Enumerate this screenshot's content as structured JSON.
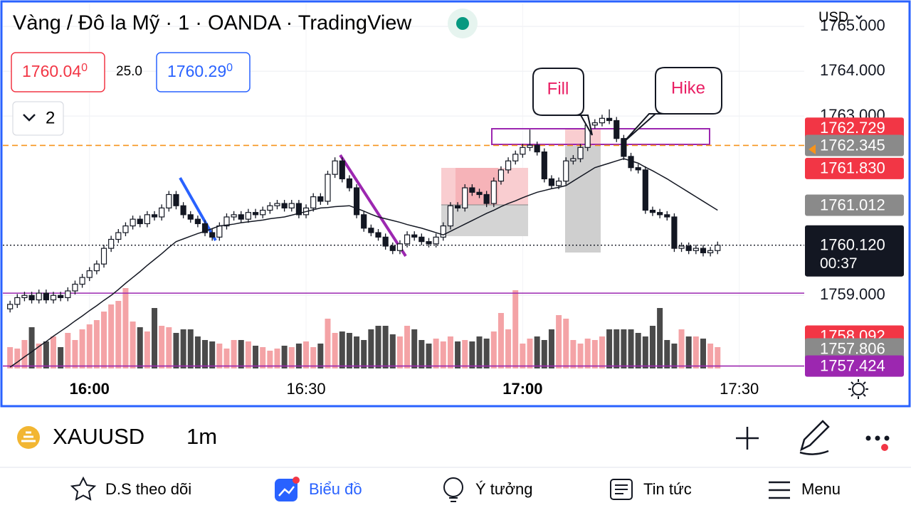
{
  "header": {
    "title": "Vàng / Đô la Mỹ · 1 · OANDA · TradingView",
    "currency": "USD",
    "bid": "1760.04",
    "bid_sup": "0",
    "spread": "25.0",
    "ask": "1760.29",
    "ask_sup": "0",
    "indicators_count": "2"
  },
  "chart_data": {
    "type": "candlestick",
    "x": [
      "15:49",
      "15:50",
      "15:51",
      "15:52",
      "15:53",
      "15:54",
      "15:55",
      "15:56",
      "15:57",
      "15:58",
      "15:59",
      "16:00",
      "16:01",
      "16:02",
      "16:03",
      "16:04",
      "16:05",
      "16:06",
      "16:07",
      "16:08",
      "16:09",
      "16:10",
      "16:11",
      "16:12",
      "16:13",
      "16:14",
      "16:15",
      "16:16",
      "16:17",
      "16:18",
      "16:19",
      "16:20",
      "16:21",
      "16:22",
      "16:23",
      "16:24",
      "16:25",
      "16:26",
      "16:27",
      "16:28",
      "16:29",
      "16:30",
      "16:31",
      "16:32",
      "16:33",
      "16:34",
      "16:35",
      "16:36",
      "16:37",
      "16:38",
      "16:39",
      "16:40",
      "16:41",
      "16:42",
      "16:43",
      "16:44",
      "16:45",
      "16:46",
      "16:47",
      "16:48",
      "16:49",
      "16:50",
      "16:51",
      "16:52",
      "16:53",
      "16:54",
      "16:55",
      "16:56",
      "16:57",
      "16:58",
      "16:59",
      "17:00",
      "17:01",
      "17:02",
      "17:03",
      "17:04",
      "17:05",
      "17:06",
      "17:07",
      "17:08",
      "17:09",
      "17:10",
      "17:11",
      "17:12",
      "17:13",
      "17:14",
      "17:15",
      "17:16",
      "17:17",
      "17:18",
      "17:19",
      "17:20",
      "17:21",
      "17:22",
      "17:23",
      "17:24",
      "17:25",
      "17:26",
      "17:27"
    ],
    "open": [
      1758.7,
      1758.8,
      1758.95,
      1759.0,
      1758.9,
      1759.05,
      1758.9,
      1759.0,
      1758.95,
      1759.1,
      1759.25,
      1759.4,
      1759.55,
      1759.7,
      1760.05,
      1760.25,
      1760.4,
      1760.55,
      1760.7,
      1760.6,
      1760.8,
      1760.75,
      1760.95,
      1761.25,
      1761.0,
      1760.8,
      1760.7,
      1760.6,
      1760.4,
      1760.3,
      1760.55,
      1760.75,
      1760.8,
      1760.7,
      1760.85,
      1760.8,
      1760.9,
      1761.0,
      1761.05,
      1760.95,
      1761.05,
      1760.8,
      1760.95,
      1761.2,
      1761.1,
      1761.7,
      1762.0,
      1761.6,
      1761.4,
      1760.8,
      1760.5,
      1760.4,
      1760.3,
      1760.1,
      1760.0,
      1760.15,
      1760.35,
      1760.3,
      1760.2,
      1760.15,
      1760.3,
      1760.55,
      1761.0,
      1760.95,
      1761.4,
      1761.3,
      1761.25,
      1761.05,
      1761.55,
      1761.8,
      1762.0,
      1762.15,
      1762.3,
      1762.35,
      1762.2,
      1761.6,
      1761.45,
      1761.55,
      1762.0,
      1762.05,
      1762.3,
      1762.8,
      1762.85,
      1762.95,
      1762.9,
      1762.5,
      1762.1,
      1761.85,
      1761.8,
      1760.9,
      1760.85,
      1760.8,
      1760.75,
      1760.05,
      1760.1,
      1760.0,
      1760.05,
      1759.95,
      1760.0
    ],
    "high": [
      1758.88,
      1759.03,
      1759.08,
      1759.08,
      1759.13,
      1759.13,
      1759.08,
      1759.08,
      1759.18,
      1759.33,
      1759.48,
      1759.63,
      1759.78,
      1760.13,
      1760.33,
      1760.48,
      1760.63,
      1760.78,
      1760.78,
      1760.88,
      1760.88,
      1761.03,
      1761.33,
      1761.33,
      1761.08,
      1760.88,
      1760.78,
      1760.68,
      1760.48,
      1760.63,
      1760.83,
      1760.88,
      1760.88,
      1760.93,
      1760.93,
      1760.98,
      1761.08,
      1761.13,
      1761.13,
      1761.13,
      1761.13,
      1761.03,
      1761.28,
      1761.28,
      1761.78,
      1762.08,
      1762.08,
      1761.68,
      1761.48,
      1760.88,
      1760.58,
      1760.48,
      1760.38,
      1760.18,
      1760.23,
      1760.43,
      1760.43,
      1760.38,
      1760.28,
      1760.38,
      1760.63,
      1761.08,
      1761.08,
      1761.48,
      1761.48,
      1761.38,
      1761.33,
      1761.63,
      1761.88,
      1762.08,
      1762.23,
      1762.38,
      1762.7,
      1762.43,
      1762.28,
      1761.68,
      1761.63,
      1762.08,
      1762.13,
      1762.38,
      1762.88,
      1762.93,
      1763.03,
      1763.15,
      1762.98,
      1762.58,
      1762.18,
      1761.93,
      1761.88,
      1760.98,
      1760.93,
      1760.88,
      1760.83,
      1760.18,
      1760.18,
      1760.13,
      1760.13,
      1760.08,
      1760.2
    ],
    "low": [
      1758.62,
      1758.72,
      1758.87,
      1758.82,
      1758.82,
      1758.82,
      1758.82,
      1758.87,
      1758.87,
      1759.02,
      1759.17,
      1759.32,
      1759.47,
      1759.62,
      1759.97,
      1760.17,
      1760.32,
      1760.47,
      1760.52,
      1760.52,
      1760.67,
      1760.67,
      1760.87,
      1760.92,
      1760.72,
      1760.62,
      1760.52,
      1760.32,
      1760.22,
      1760.22,
      1760.47,
      1760.67,
      1760.62,
      1760.62,
      1760.72,
      1760.72,
      1760.82,
      1760.92,
      1760.87,
      1760.87,
      1760.72,
      1760.72,
      1760.87,
      1761.02,
      1761.02,
      1761.62,
      1761.52,
      1761.32,
      1760.72,
      1760.42,
      1760.32,
      1760.22,
      1760.02,
      1759.92,
      1759.92,
      1760.07,
      1760.22,
      1760.12,
      1760.07,
      1760.07,
      1760.22,
      1760.47,
      1760.87,
      1760.87,
      1761.22,
      1761.17,
      1760.97,
      1760.97,
      1761.47,
      1761.72,
      1761.92,
      1762.07,
      1762.22,
      1762.12,
      1761.52,
      1761.37,
      1761.37,
      1761.47,
      1761.92,
      1761.97,
      1762.22,
      1762.72,
      1762.77,
      1762.82,
      1762.42,
      1762.02,
      1761.77,
      1761.72,
      1760.82,
      1760.77,
      1760.72,
      1760.67,
      1759.97,
      1759.97,
      1759.92,
      1759.92,
      1759.87,
      1759.87,
      1759.92
    ],
    "close": [
      1758.8,
      1758.95,
      1759.0,
      1758.9,
      1759.05,
      1758.9,
      1759.0,
      1758.95,
      1759.1,
      1759.25,
      1759.4,
      1759.55,
      1759.7,
      1760.05,
      1760.25,
      1760.4,
      1760.55,
      1760.7,
      1760.6,
      1760.8,
      1760.75,
      1760.95,
      1761.25,
      1761.0,
      1760.8,
      1760.7,
      1760.6,
      1760.4,
      1760.3,
      1760.55,
      1760.75,
      1760.8,
      1760.7,
      1760.85,
      1760.8,
      1760.9,
      1761.0,
      1761.05,
      1760.95,
      1761.05,
      1760.8,
      1760.95,
      1761.2,
      1761.1,
      1761.7,
      1762.0,
      1761.6,
      1761.4,
      1760.8,
      1760.5,
      1760.4,
      1760.3,
      1760.1,
      1760.0,
      1760.15,
      1760.35,
      1760.3,
      1760.2,
      1760.15,
      1760.3,
      1760.55,
      1761.0,
      1760.95,
      1761.4,
      1761.3,
      1761.25,
      1761.05,
      1761.55,
      1761.8,
      1762.0,
      1762.15,
      1762.3,
      1762.35,
      1762.2,
      1761.6,
      1761.45,
      1761.55,
      1762.0,
      1762.05,
      1762.3,
      1762.8,
      1762.85,
      1762.95,
      1762.9,
      1762.5,
      1762.1,
      1761.85,
      1761.8,
      1760.9,
      1760.85,
      1760.8,
      1760.75,
      1760.05,
      1760.1,
      1760.0,
      1760.05,
      1759.95,
      1760.0,
      1760.12
    ],
    "ma": [
      1757.4,
      1757.51,
      1757.63,
      1757.74,
      1757.86,
      1757.97,
      1758.09,
      1758.2,
      1758.31,
      1758.43,
      1758.54,
      1758.66,
      1758.77,
      1758.89,
      1759.0,
      1759.13,
      1759.27,
      1759.4,
      1759.53,
      1759.67,
      1759.8,
      1759.93,
      1760.07,
      1760.2,
      1760.26,
      1760.32,
      1760.38,
      1760.43,
      1760.49,
      1760.55,
      1760.57,
      1760.59,
      1760.62,
      1760.64,
      1760.66,
      1760.68,
      1760.71,
      1760.73,
      1760.75,
      1760.79,
      1760.83,
      1760.87,
      1760.91,
      1760.95,
      1760.96,
      1760.98,
      1760.99,
      1761.0,
      1760.94,
      1760.88,
      1760.81,
      1760.75,
      1760.71,
      1760.67,
      1760.63,
      1760.58,
      1760.54,
      1760.5,
      1760.45,
      1760.4,
      1760.35,
      1760.43,
      1760.51,
      1760.59,
      1760.67,
      1760.75,
      1760.83,
      1760.9,
      1760.98,
      1761.05,
      1761.11,
      1761.18,
      1761.24,
      1761.3,
      1761.34,
      1761.38,
      1761.41,
      1761.45,
      1761.55,
      1761.65,
      1761.75,
      1761.85,
      1761.9,
      1761.95,
      1762.0,
      1762.05,
      1762.0,
      1761.95,
      1761.86,
      1761.78,
      1761.69,
      1761.6,
      1761.5,
      1761.4,
      1761.3,
      1761.2,
      1761.1,
      1761.0,
      1760.9
    ],
    "volume": [
      30,
      28,
      40,
      58,
      35,
      38,
      45,
      30,
      50,
      40,
      55,
      62,
      68,
      80,
      90,
      95,
      113,
      66,
      58,
      52,
      85,
      60,
      58,
      50,
      55,
      55,
      45,
      40,
      38,
      35,
      28,
      40,
      40,
      38,
      32,
      30,
      25,
      28,
      32,
      30,
      35,
      38,
      30,
      35,
      70,
      50,
      52,
      50,
      45,
      40,
      55,
      60,
      60,
      48,
      45,
      60,
      55,
      40,
      35,
      42,
      38,
      45,
      38,
      40,
      38,
      45,
      42,
      52,
      78,
      55,
      110,
      35,
      42,
      45,
      40,
      55,
      75,
      70,
      40,
      35,
      42,
      40,
      45,
      55,
      55,
      55,
      55,
      50,
      45,
      60,
      85,
      40,
      35,
      55,
      45,
      45,
      42,
      35,
      30
    ],
    "volume_lim": [
      0,
      110
    ],
    "colors": {
      "up_body": "#ffffff",
      "down_body": "#131722",
      "wick": "#131722",
      "volume_up": "#f4a3a6",
      "volume_down": "#4a4a4a",
      "ma": "#131722"
    },
    "xlim": [
      "15:48",
      "17:39"
    ],
    "xticks": [
      "16:00",
      "16:30",
      "17:00",
      "17:30"
    ],
    "ylim": [
      1757.37,
      1765.51
    ],
    "yticks": [
      {
        "value": 1765,
        "label": "1765.000"
      },
      {
        "value": 1764,
        "label": "1764.000"
      },
      {
        "value": 1763,
        "label": "1763.000"
      },
      {
        "value": 1759,
        "label": "1759.000"
      }
    ],
    "grid": true,
    "hlines": [
      {
        "value": 1762.345,
        "color": "#f7931a",
        "style": "dashed"
      },
      {
        "value": 1759.05,
        "color": "#9c27b0",
        "style": "solid"
      },
      {
        "value": 1757.424,
        "color": "#9c27b0",
        "style": "solid"
      },
      {
        "value": 1760.12,
        "color": "#131722",
        "style": "dotted"
      }
    ],
    "price_labels": [
      {
        "value": 1762.729,
        "label": "1762.729",
        "color": "#f23645"
      },
      {
        "value": 1762.345,
        "label": "1762.345",
        "color": "#8a8a8a"
      },
      {
        "value": 1761.83,
        "label": "1761.830",
        "color": "#f23645"
      },
      {
        "value": 1761.012,
        "label": "1761.012",
        "color": "#8a8a8a"
      },
      {
        "value": 1758.092,
        "label": "1758.092",
        "color": "#f23645"
      },
      {
        "value": 1757.806,
        "label": "1757.806",
        "color": "#8a8a8a"
      },
      {
        "value": 1757.424,
        "label": "1757.424",
        "color": "#9c27b0"
      }
    ],
    "last_price": {
      "value": 1760.12,
      "label": "1760.120",
      "countdown": "00:37",
      "color": "#131722"
    },
    "annotations": [
      "Fill",
      "Hike"
    ]
  },
  "toolbar": {
    "symbol": "XAUUSD",
    "interval": "1m"
  },
  "nav": [
    "D.S theo dõi",
    "Biểu đồ",
    "Ý tưởng",
    "Tin tức",
    "Menu"
  ]
}
